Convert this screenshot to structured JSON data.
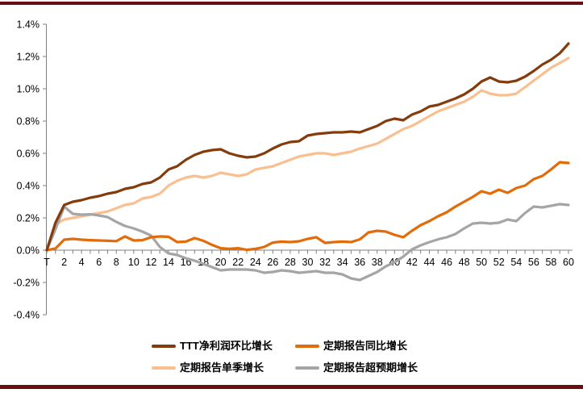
{
  "page": {
    "background": "#FFFFFF"
  },
  "banner": {
    "color": "#6B0E13"
  },
  "axis": {
    "color": "#808080",
    "label_color": "#000000",
    "label_font_px": 12.5
  },
  "chart_data": {
    "type": "line",
    "title": "",
    "xlabel": "",
    "ylabel": "",
    "grid": false,
    "legend_position": "bottom",
    "ylim": [
      -0.4,
      1.4
    ],
    "ytick_step": 0.2,
    "unit": "%",
    "x_range": [
      0,
      60
    ],
    "xtick_labels": [
      "T",
      "2",
      "4",
      "6",
      "8",
      "10",
      "12",
      "14",
      "16",
      "18",
      "20",
      "22",
      "24",
      "26",
      "28",
      "30",
      "32",
      "34",
      "36",
      "38",
      "40",
      "42",
      "44",
      "46",
      "48",
      "50",
      "52",
      "54",
      "56",
      "58",
      "60"
    ],
    "ytick_labels": [
      "1.4%",
      "1.2%",
      "1.0%",
      "0.8%",
      "0.6%",
      "0.4%",
      "0.2%",
      "0.0%",
      "-0.2%",
      "-0.4%"
    ],
    "series": [
      {
        "name": "TTT净利润环比增长",
        "color": "#843C0C",
        "values": [
          0,
          0.17,
          0.28,
          0.3,
          0.31,
          0.325,
          0.335,
          0.35,
          0.36,
          0.38,
          0.39,
          0.41,
          0.42,
          0.45,
          0.5,
          0.52,
          0.56,
          0.59,
          0.61,
          0.62,
          0.625,
          0.6,
          0.585,
          0.575,
          0.58,
          0.6,
          0.63,
          0.655,
          0.67,
          0.675,
          0.71,
          0.72,
          0.725,
          0.73,
          0.73,
          0.735,
          0.73,
          0.75,
          0.77,
          0.8,
          0.815,
          0.805,
          0.84,
          0.86,
          0.89,
          0.9,
          0.92,
          0.94,
          0.965,
          1.0,
          1.045,
          1.07,
          1.045,
          1.04,
          1.05,
          1.075,
          1.11,
          1.15,
          1.18,
          1.22,
          1.28
        ]
      },
      {
        "name": "定期报告同比增长",
        "color": "#E26B0A",
        "values": [
          0,
          0.01,
          0.065,
          0.07,
          0.065,
          0.062,
          0.06,
          0.058,
          0.056,
          0.085,
          0.06,
          0.062,
          0.08,
          0.085,
          0.083,
          0.05,
          0.053,
          0.075,
          0.058,
          0.033,
          0.012,
          0.008,
          0.012,
          0.002,
          0.008,
          0.02,
          0.047,
          0.053,
          0.05,
          0.055,
          0.07,
          0.08,
          0.045,
          0.05,
          0.053,
          0.05,
          0.067,
          0.11,
          0.12,
          0.115,
          0.095,
          0.08,
          0.12,
          0.155,
          0.18,
          0.21,
          0.235,
          0.27,
          0.3,
          0.33,
          0.365,
          0.35,
          0.375,
          0.355,
          0.385,
          0.4,
          0.44,
          0.46,
          0.5,
          0.545,
          0.54
        ]
      },
      {
        "name": "定期报告单季增长",
        "color": "#FABF8F",
        "values": [
          0,
          0.16,
          0.19,
          0.2,
          0.21,
          0.22,
          0.23,
          0.24,
          0.26,
          0.28,
          0.29,
          0.32,
          0.33,
          0.35,
          0.4,
          0.43,
          0.45,
          0.46,
          0.45,
          0.46,
          0.48,
          0.47,
          0.46,
          0.47,
          0.5,
          0.51,
          0.52,
          0.54,
          0.56,
          0.58,
          0.59,
          0.6,
          0.6,
          0.59,
          0.6,
          0.61,
          0.63,
          0.645,
          0.66,
          0.69,
          0.72,
          0.75,
          0.77,
          0.8,
          0.83,
          0.86,
          0.88,
          0.9,
          0.92,
          0.95,
          0.99,
          0.97,
          0.96,
          0.96,
          0.97,
          1.01,
          1.05,
          1.09,
          1.13,
          1.16,
          1.19
        ]
      },
      {
        "name": "定期报告超预期增长",
        "color": "#A5A5A5",
        "values": [
          0,
          0.13,
          0.27,
          0.225,
          0.22,
          0.222,
          0.215,
          0.205,
          0.175,
          0.15,
          0.135,
          0.115,
          0.09,
          0.02,
          -0.02,
          -0.03,
          -0.05,
          -0.065,
          -0.085,
          -0.105,
          -0.125,
          -0.12,
          -0.12,
          -0.12,
          -0.125,
          -0.14,
          -0.135,
          -0.125,
          -0.13,
          -0.14,
          -0.135,
          -0.13,
          -0.14,
          -0.14,
          -0.15,
          -0.175,
          -0.185,
          -0.16,
          -0.135,
          -0.1,
          -0.075,
          -0.04,
          0.005,
          0.03,
          0.05,
          0.067,
          0.08,
          0.1,
          0.135,
          0.165,
          0.17,
          0.165,
          0.17,
          0.19,
          0.18,
          0.23,
          0.27,
          0.265,
          0.275,
          0.285,
          0.28
        ]
      }
    ]
  }
}
